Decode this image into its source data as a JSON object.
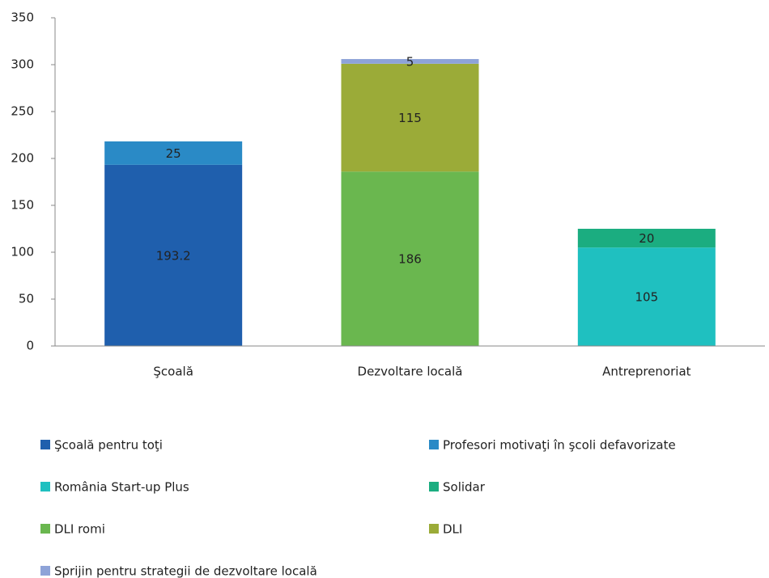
{
  "chart_data": {
    "type": "bar",
    "stacked": true,
    "categories": [
      "Şcoală",
      "Dezvoltare locală",
      "Antreprenoriat"
    ],
    "series": [
      {
        "name": "Şcoală pentru toţi",
        "color": "#1f5fad",
        "values": [
          193.2,
          null,
          null
        ]
      },
      {
        "name": "Profesori motivaţi în şcoli defavorizate",
        "color": "#2a8ac6",
        "values": [
          25,
          null,
          null
        ]
      },
      {
        "name": "România Start-up Plus",
        "color": "#1fc0c0",
        "values": [
          null,
          null,
          105
        ]
      },
      {
        "name": "Solidar",
        "color": "#1bad80",
        "values": [
          null,
          null,
          20
        ]
      },
      {
        "name": "DLI romi",
        "color": "#6ab74f",
        "values": [
          null,
          186,
          null
        ]
      },
      {
        "name": "DLI",
        "color": "#9bab38",
        "values": [
          null,
          115,
          null
        ]
      },
      {
        "name": "Sprijin pentru strategii de dezvoltare locală",
        "color": "#8ea3d8",
        "values": [
          null,
          5,
          null
        ]
      }
    ],
    "ylim": [
      0,
      350
    ],
    "yticks": [
      0,
      50,
      100,
      150,
      200,
      250,
      300,
      350
    ],
    "grid": false
  }
}
